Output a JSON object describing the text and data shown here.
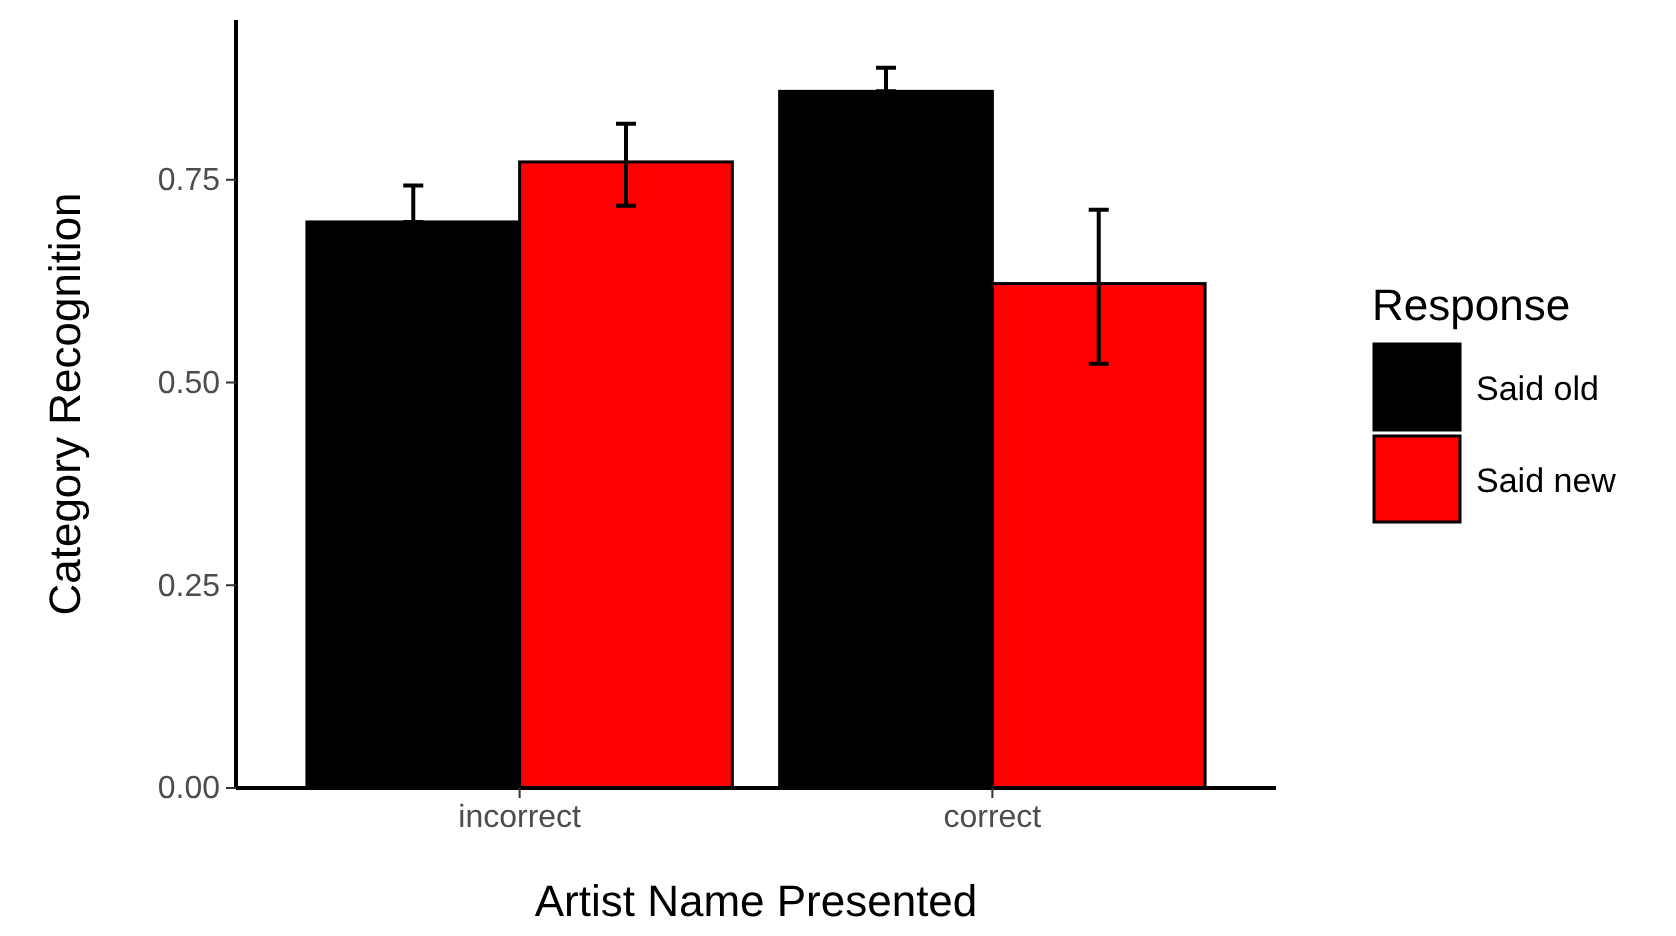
{
  "chart_data": {
    "type": "bar",
    "xlabel": "Artist Name Presented",
    "ylabel": "Category Recognition",
    "legend_title": "Response",
    "categories": [
      "incorrect",
      "correct"
    ],
    "series": [
      {
        "name": "Said old",
        "color": "#000000",
        "values": [
          0.698,
          0.859
        ],
        "errors": [
          [
            0.698,
            0.743
          ],
          [
            0.859,
            0.888
          ]
        ]
      },
      {
        "name": "Said new",
        "color": "#ff0000",
        "values": [
          0.772,
          0.622
        ],
        "errors": [
          [
            0.718,
            0.819
          ],
          [
            0.523,
            0.713
          ]
        ]
      }
    ],
    "ylim": [
      0,
      0.947
    ],
    "yticks": [
      {
        "value": 0,
        "label": "0.00"
      },
      {
        "value": 0.25,
        "label": "0.25"
      },
      {
        "value": 0.5,
        "label": "0.50"
      },
      {
        "value": 0.75,
        "label": "0.75"
      }
    ],
    "grid": false,
    "legend": "right"
  }
}
